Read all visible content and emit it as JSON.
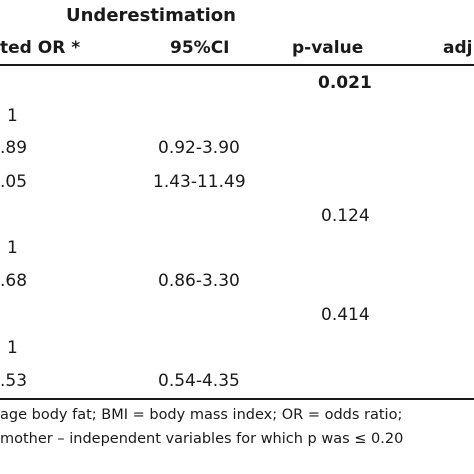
{
  "table": {
    "group_header": "Underestimation",
    "columns": {
      "or": "ted OR *",
      "ci": "95%CI",
      "p": "p-value",
      "adj": "adj"
    },
    "rows": [
      {
        "or": "",
        "ci": "",
        "p": "0.021",
        "p_bold": true
      },
      {
        "or": "1",
        "ci": "",
        "p": ""
      },
      {
        "or": ".89",
        "ci": "0.92-3.90",
        "p": ""
      },
      {
        "or": ".05",
        "ci": "1.43-11.49",
        "p": ""
      },
      {
        "or": "",
        "ci": "",
        "p": "0.124"
      },
      {
        "or": "1",
        "ci": "",
        "p": ""
      },
      {
        "or": ".68",
        "ci": "0.86-3.30",
        "p": ""
      },
      {
        "or": "",
        "ci": "",
        "p": "0.414"
      },
      {
        "or": "1",
        "ci": "",
        "p": ""
      },
      {
        "or": ".53",
        "ci": "0.54-4.35",
        "p": ""
      }
    ]
  },
  "footnote": {
    "line1": "age body fat; BMI = body mass index; OR = odds ratio;",
    "line2": "mother – independent variables for which p was ≤ 0.20"
  }
}
